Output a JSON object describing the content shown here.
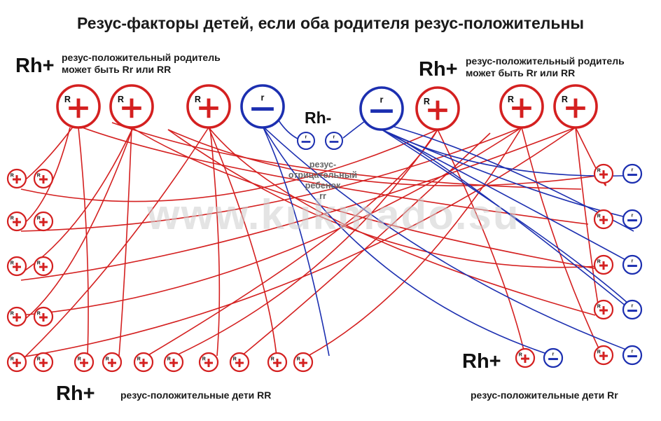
{
  "title": "Резус-факторы детей, если оба родителя резус-положительны",
  "left_parent": {
    "rh_label": "Rh+",
    "note_line1": "резус-положительный родитель",
    "note_line2": "может быть Rr или RR"
  },
  "right_parent": {
    "rh_label": "Rh+",
    "note_line1": "резус-положительный родитель",
    "note_line2": "может быть Rr или RR"
  },
  "negative_child": {
    "rh_label": "Rh-",
    "note_line1": "резус-",
    "note_line2": "отрицательный",
    "note_line3": "ребенок",
    "note_line4": "rr"
  },
  "bottom_left": {
    "rh_label": "Rh+",
    "caption": "резус-положительные дети RR"
  },
  "bottom_right": {
    "rh_label": "Rh+",
    "caption": "резус-положительные дети Rr"
  },
  "watermark": "www.kukmado.su",
  "allele_dominant": "R",
  "allele_recessive": "r",
  "colors": {
    "dominant": "#d42020",
    "recessive": "#1c2fb0"
  }
}
